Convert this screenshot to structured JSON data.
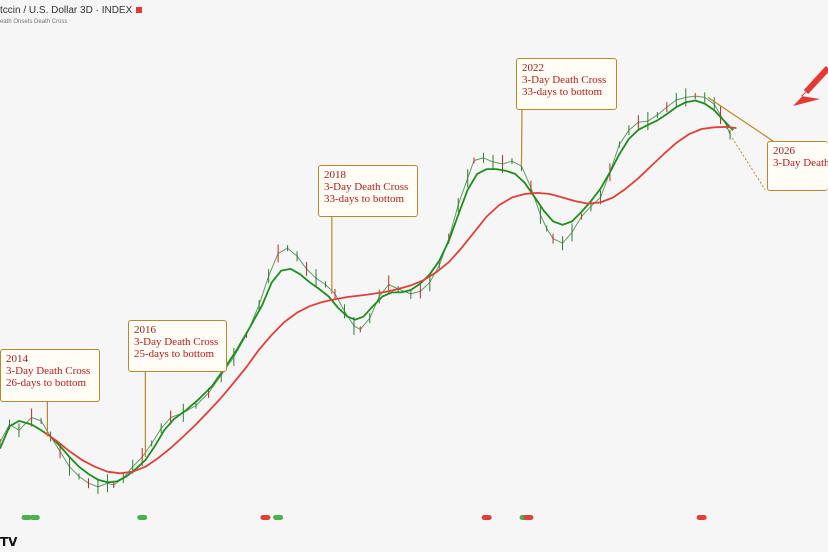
{
  "header": {
    "title": "tccin / U.S. Dollar  3D · INDEX",
    "subtitle": "eath Onsets Death Cross"
  },
  "logo_text": "TV",
  "chart_data": {
    "type": "line",
    "x_range": [
      2013.3,
      2026.4
    ],
    "y_scale": "log",
    "grid": false,
    "series": [
      {
        "role": "price",
        "color": "#2e7d32",
        "points": [
          [
            2013.3,
            138
          ],
          [
            2013.45,
            180
          ],
          [
            2013.6,
            165
          ],
          [
            2013.8,
            200
          ],
          [
            2013.95,
            190
          ],
          [
            2014.1,
            150
          ],
          [
            2014.25,
            120
          ],
          [
            2014.4,
            95
          ],
          [
            2014.55,
            82
          ],
          [
            2014.7,
            74
          ],
          [
            2014.85,
            70
          ],
          [
            2015.0,
            74
          ],
          [
            2015.1,
            72
          ],
          [
            2015.25,
            80
          ],
          [
            2015.4,
            95
          ],
          [
            2015.55,
            110
          ],
          [
            2015.7,
            135
          ],
          [
            2015.85,
            170
          ],
          [
            2016.0,
            200
          ],
          [
            2016.2,
            215
          ],
          [
            2016.4,
            240
          ],
          [
            2016.6,
            290
          ],
          [
            2016.8,
            380
          ],
          [
            2017.0,
            500
          ],
          [
            2017.2,
            700
          ],
          [
            2017.4,
            1100
          ],
          [
            2017.55,
            1700
          ],
          [
            2017.7,
            2400
          ],
          [
            2017.85,
            2600
          ],
          [
            2018.0,
            2300
          ],
          [
            2018.15,
            1900
          ],
          [
            2018.3,
            1650
          ],
          [
            2018.45,
            1500
          ],
          [
            2018.6,
            1300
          ],
          [
            2018.75,
            1000
          ],
          [
            2018.9,
            800
          ],
          [
            2019.0,
            760
          ],
          [
            2019.15,
            900
          ],
          [
            2019.3,
            1250
          ],
          [
            2019.45,
            1500
          ],
          [
            2019.6,
            1400
          ],
          [
            2019.8,
            1300
          ],
          [
            2019.95,
            1350
          ],
          [
            2020.1,
            1550
          ],
          [
            2020.25,
            2000
          ],
          [
            2020.4,
            3000
          ],
          [
            2020.55,
            5000
          ],
          [
            2020.7,
            7500
          ],
          [
            2020.8,
            9800
          ],
          [
            2020.95,
            10200
          ],
          [
            2021.1,
            9600
          ],
          [
            2021.25,
            9300
          ],
          [
            2021.4,
            9700
          ],
          [
            2021.55,
            9000
          ],
          [
            2021.7,
            6500
          ],
          [
            2021.85,
            4300
          ],
          [
            2021.95,
            3500
          ],
          [
            2022.05,
            3000
          ],
          [
            2022.2,
            2800
          ],
          [
            2022.35,
            3300
          ],
          [
            2022.5,
            4200
          ],
          [
            2022.65,
            4900
          ],
          [
            2022.8,
            5600
          ],
          [
            2022.95,
            8200
          ],
          [
            2023.1,
            12500
          ],
          [
            2023.25,
            15500
          ],
          [
            2023.4,
            17500
          ],
          [
            2023.55,
            17800
          ],
          [
            2023.7,
            19500
          ],
          [
            2023.85,
            22000
          ],
          [
            2024.0,
            24500
          ],
          [
            2024.15,
            25500
          ],
          [
            2024.3,
            26000
          ],
          [
            2024.45,
            25500
          ],
          [
            2024.6,
            23000
          ],
          [
            2024.7,
            19500
          ],
          [
            2024.8,
            16500
          ],
          [
            2024.85,
            14500
          ]
        ]
      },
      {
        "role": "moving-average-short",
        "color": "#1e8e1e",
        "points": [
          [
            2013.3,
            125
          ],
          [
            2013.45,
            175
          ],
          [
            2013.6,
            190
          ],
          [
            2013.8,
            180
          ],
          [
            2013.95,
            165
          ],
          [
            2014.1,
            150
          ],
          [
            2014.25,
            130
          ],
          [
            2014.4,
            110
          ],
          [
            2014.55,
            95
          ],
          [
            2014.7,
            85
          ],
          [
            2014.85,
            78
          ],
          [
            2015.0,
            75
          ],
          [
            2015.15,
            76
          ],
          [
            2015.3,
            82
          ],
          [
            2015.45,
            92
          ],
          [
            2015.6,
            105
          ],
          [
            2015.75,
            130
          ],
          [
            2015.9,
            165
          ],
          [
            2016.05,
            195
          ],
          [
            2016.25,
            225
          ],
          [
            2016.45,
            265
          ],
          [
            2016.65,
            320
          ],
          [
            2016.85,
            420
          ],
          [
            2017.05,
            560
          ],
          [
            2017.25,
            780
          ],
          [
            2017.45,
            1100
          ],
          [
            2017.6,
            1550
          ],
          [
            2017.75,
            1850
          ],
          [
            2017.9,
            1900
          ],
          [
            2018.05,
            1750
          ],
          [
            2018.2,
            1550
          ],
          [
            2018.35,
            1400
          ],
          [
            2018.5,
            1250
          ],
          [
            2018.65,
            1050
          ],
          [
            2018.8,
            920
          ],
          [
            2018.92,
            880
          ],
          [
            2019.05,
            920
          ],
          [
            2019.2,
            1080
          ],
          [
            2019.35,
            1250
          ],
          [
            2019.5,
            1330
          ],
          [
            2019.65,
            1330
          ],
          [
            2019.8,
            1380
          ],
          [
            2019.95,
            1520
          ],
          [
            2020.1,
            1750
          ],
          [
            2020.25,
            2150
          ],
          [
            2020.4,
            2900
          ],
          [
            2020.55,
            4300
          ],
          [
            2020.7,
            6300
          ],
          [
            2020.85,
            8000
          ],
          [
            2021.0,
            8600
          ],
          [
            2021.15,
            8600
          ],
          [
            2021.3,
            8400
          ],
          [
            2021.45,
            8000
          ],
          [
            2021.6,
            7000
          ],
          [
            2021.75,
            5700
          ],
          [
            2021.9,
            4600
          ],
          [
            2022.05,
            3900
          ],
          [
            2022.2,
            3700
          ],
          [
            2022.35,
            3900
          ],
          [
            2022.5,
            4500
          ],
          [
            2022.65,
            5300
          ],
          [
            2022.8,
            6400
          ],
          [
            2022.95,
            8200
          ],
          [
            2023.1,
            10800
          ],
          [
            2023.25,
            13600
          ],
          [
            2023.4,
            15600
          ],
          [
            2023.55,
            16800
          ],
          [
            2023.7,
            18000
          ],
          [
            2023.85,
            19800
          ],
          [
            2024.0,
            22000
          ],
          [
            2024.15,
            23700
          ],
          [
            2024.3,
            24300
          ],
          [
            2024.45,
            23200
          ],
          [
            2024.6,
            21000
          ],
          [
            2024.75,
            18000
          ],
          [
            2024.9,
            15500
          ]
        ]
      },
      {
        "role": "moving-average-long",
        "color": "#e0403a",
        "points": [
          [
            2014.0,
            160
          ],
          [
            2014.2,
            140
          ],
          [
            2014.4,
            120
          ],
          [
            2014.6,
            105
          ],
          [
            2014.8,
            95
          ],
          [
            2015.0,
            88
          ],
          [
            2015.2,
            86
          ],
          [
            2015.4,
            88
          ],
          [
            2015.6,
            95
          ],
          [
            2015.8,
            108
          ],
          [
            2016.0,
            126
          ],
          [
            2016.2,
            150
          ],
          [
            2016.4,
            180
          ],
          [
            2016.6,
            220
          ],
          [
            2016.8,
            270
          ],
          [
            2017.0,
            340
          ],
          [
            2017.2,
            430
          ],
          [
            2017.4,
            560
          ],
          [
            2017.6,
            700
          ],
          [
            2017.8,
            850
          ],
          [
            2018.0,
            980
          ],
          [
            2018.2,
            1080
          ],
          [
            2018.4,
            1150
          ],
          [
            2018.6,
            1200
          ],
          [
            2018.8,
            1240
          ],
          [
            2019.0,
            1270
          ],
          [
            2019.2,
            1300
          ],
          [
            2019.4,
            1340
          ],
          [
            2019.6,
            1400
          ],
          [
            2019.8,
            1480
          ],
          [
            2020.0,
            1600
          ],
          [
            2020.2,
            1800
          ],
          [
            2020.4,
            2100
          ],
          [
            2020.6,
            2600
          ],
          [
            2020.8,
            3300
          ],
          [
            2021.0,
            4200
          ],
          [
            2021.2,
            5000
          ],
          [
            2021.4,
            5600
          ],
          [
            2021.6,
            5900
          ],
          [
            2021.8,
            6000
          ],
          [
            2022.0,
            5900
          ],
          [
            2022.2,
            5600
          ],
          [
            2022.4,
            5300
          ],
          [
            2022.6,
            5100
          ],
          [
            2022.8,
            5200
          ],
          [
            2023.0,
            5600
          ],
          [
            2023.2,
            6400
          ],
          [
            2023.4,
            7500
          ],
          [
            2023.6,
            9000
          ],
          [
            2023.8,
            10800
          ],
          [
            2024.0,
            12800
          ],
          [
            2024.2,
            14600
          ],
          [
            2024.4,
            15800
          ],
          [
            2024.6,
            16200
          ],
          [
            2024.8,
            16300
          ],
          [
            2024.95,
            16000
          ]
        ]
      }
    ],
    "signal_markers": [
      {
        "x": 2013.72,
        "color": "green"
      },
      {
        "x": 2013.85,
        "color": "green"
      },
      {
        "x": 2015.55,
        "color": "green"
      },
      {
        "x": 2017.5,
        "color": "red"
      },
      {
        "x": 2017.7,
        "color": "green"
      },
      {
        "x": 2021.0,
        "color": "red"
      },
      {
        "x": 2021.6,
        "color": "green"
      },
      {
        "x": 2021.66,
        "color": "red"
      },
      {
        "x": 2024.4,
        "color": "red"
      }
    ],
    "annotations": [
      {
        "year": "2014",
        "line1": "3-Day Death Cross",
        "line2": "26-days to bottom",
        "anchor_x": 2014.05
      },
      {
        "year": "2016",
        "line1": "3-Day Death Cross",
        "line2": "25-days to bottom",
        "anchor_x": 2015.6
      },
      {
        "year": "2018",
        "line1": "3-Day Death Cross",
        "line2": "33-days to bottom",
        "anchor_x": 2018.55
      },
      {
        "year": "2022",
        "line1": "3-Day Death Cross",
        "line2": "33-days to bottom",
        "anchor_x": 2021.55
      },
      {
        "year": "2026",
        "line1": "3-Day Death",
        "line2": "",
        "anchor_x": 2024.5
      }
    ]
  },
  "colors": {
    "accent": "#e53935",
    "callout_border": "#b8892c",
    "callout_text": "#b71c1c"
  }
}
